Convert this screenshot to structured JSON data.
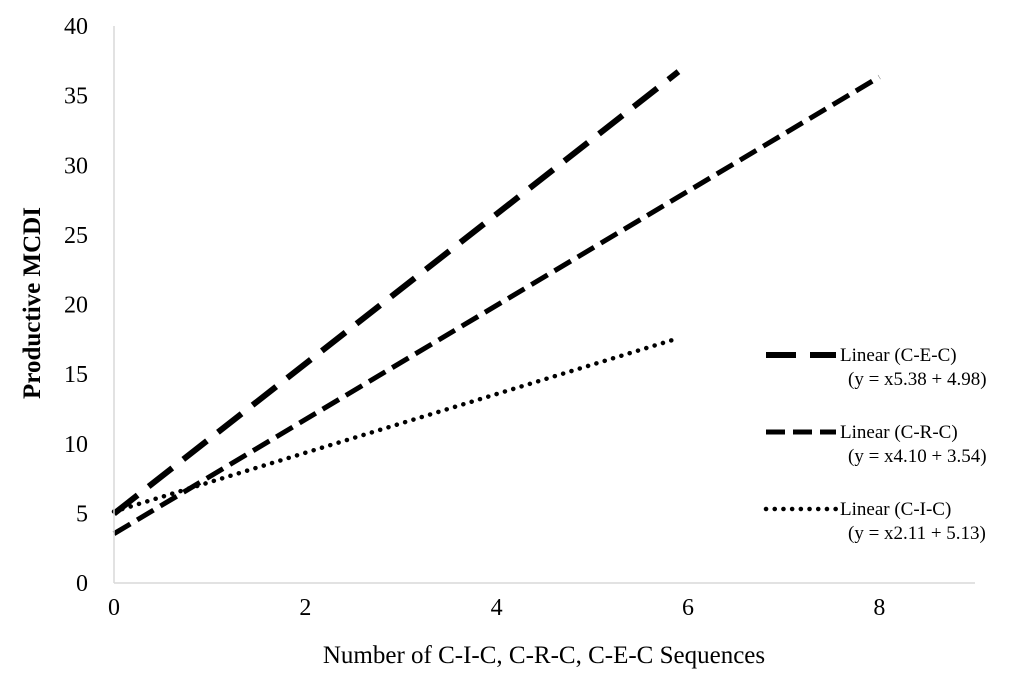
{
  "chart_data": {
    "type": "line",
    "title": "",
    "xlabel": "Number of C-I-C, C-R-C, C-E-C Sequences",
    "ylabel": "Productive MCDI",
    "xlim": [
      0,
      9
    ],
    "ylim": [
      0,
      40
    ],
    "x_ticks": [
      "0",
      "2",
      "4",
      "6",
      "8"
    ],
    "y_ticks": [
      "0",
      "5",
      "10",
      "15",
      "20",
      "25",
      "30",
      "35",
      "40"
    ],
    "grid": false,
    "legend_position": "right",
    "series": [
      {
        "name": "Linear (C-E-C)",
        "equation": "(y = x5.38 + 4.98)",
        "style": "long-dash",
        "slope": 5.38,
        "intercept": 4.98,
        "x": [
          0,
          5.9
        ],
        "y": [
          4.98,
          36.72
        ]
      },
      {
        "name": "Linear (C-R-C)",
        "equation": "(y = x4.10 + 3.54)",
        "style": "dash",
        "slope": 4.1,
        "intercept": 3.54,
        "x": [
          0,
          8
        ],
        "y": [
          3.54,
          36.34
        ]
      },
      {
        "name": "Linear (C-I-C)",
        "equation": "(y = x2.11 + 5.13)",
        "style": "dot",
        "slope": 2.11,
        "intercept": 5.13,
        "x": [
          0,
          5.9
        ],
        "y": [
          5.13,
          17.58
        ]
      }
    ]
  }
}
